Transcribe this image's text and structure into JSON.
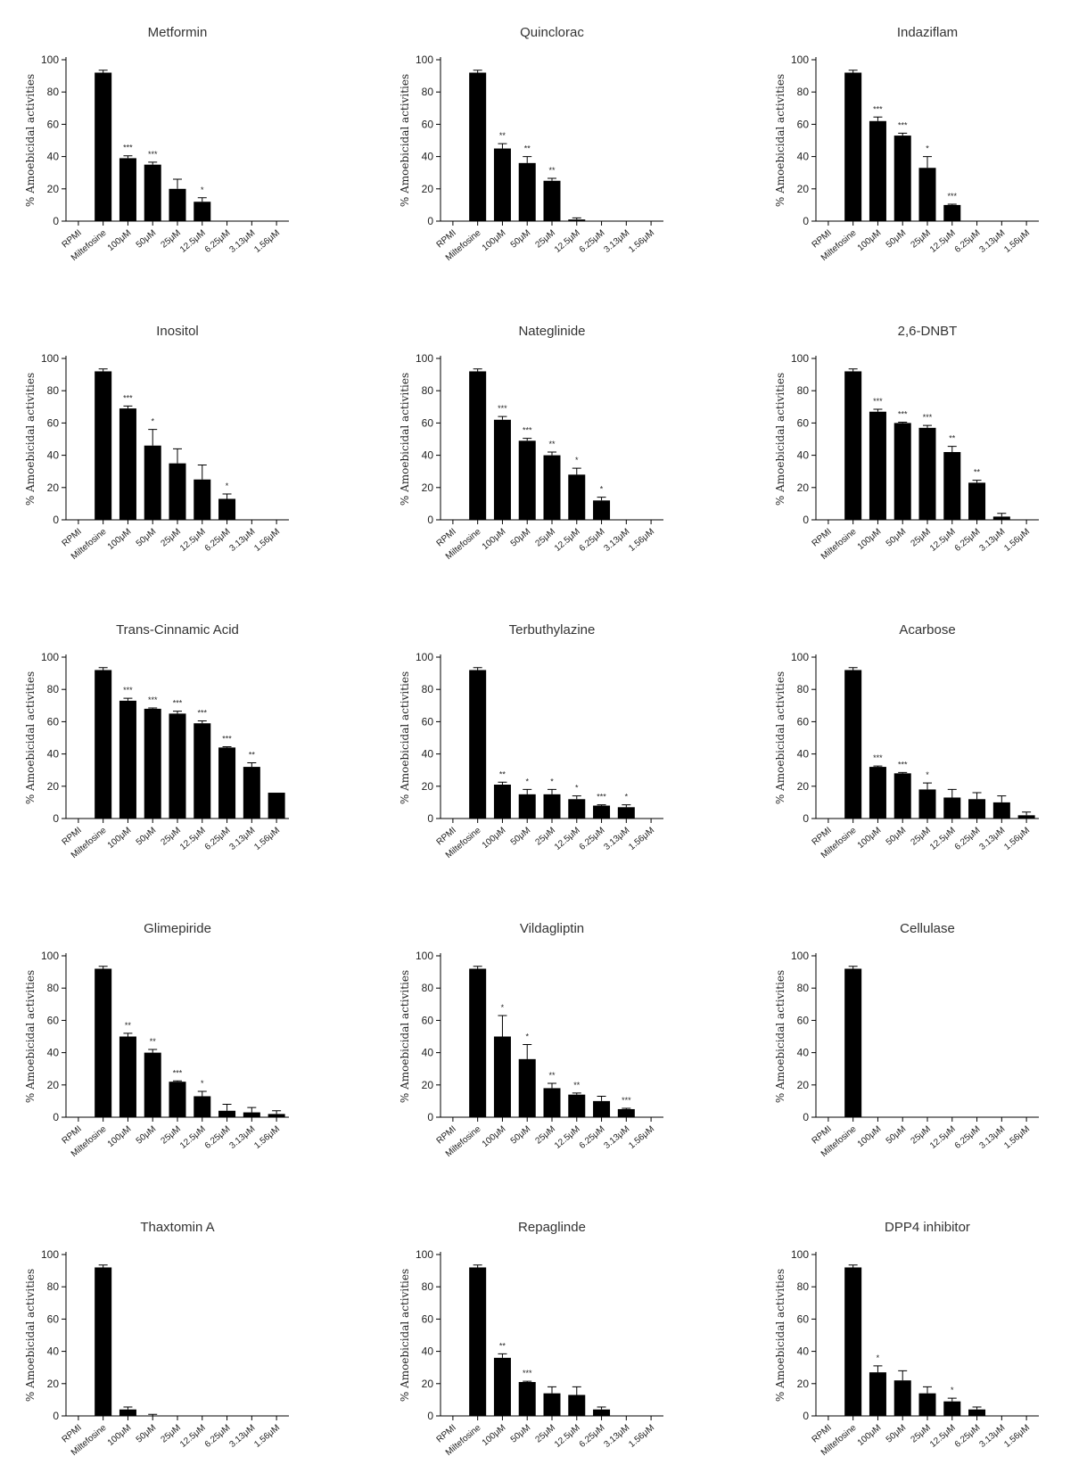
{
  "figure": {
    "categories": [
      "RPMI",
      "Miltefosine",
      "100μM",
      "50μM",
      "25μM",
      "12.5μM",
      "6.25μM",
      "3.13μM",
      "1.56μM"
    ],
    "ylabel": "% Amoebicidal activities",
    "yticks": [
      0,
      20,
      40,
      60,
      80,
      100
    ],
    "ylim": [
      0,
      100
    ],
    "bar_color": "#000000"
  },
  "chart_data": [
    {
      "type": "bar",
      "title": "Metformin",
      "values": [
        0,
        92,
        39,
        35,
        20,
        12,
        0,
        0,
        0
      ],
      "errors": [
        0,
        1.5,
        1.5,
        1.5,
        6,
        2.5,
        0,
        0,
        0
      ],
      "significance": [
        "",
        "",
        "***",
        "***",
        "",
        "*",
        "",
        "",
        ""
      ]
    },
    {
      "type": "bar",
      "title": "Quinclorac",
      "values": [
        0,
        92,
        45,
        36,
        25,
        1,
        0,
        0,
        0
      ],
      "errors": [
        0,
        1.5,
        3,
        4,
        1.5,
        1,
        0,
        0,
        0
      ],
      "significance": [
        "",
        "",
        "**",
        "**",
        "**",
        "",
        "",
        "",
        ""
      ]
    },
    {
      "type": "bar",
      "title": "Indaziflam",
      "values": [
        0,
        92,
        62,
        53,
        33,
        10,
        0,
        0,
        0
      ],
      "errors": [
        0,
        1.5,
        2.5,
        1.5,
        7,
        0.5,
        0,
        0,
        0
      ],
      "significance": [
        "",
        "",
        "***",
        "***",
        "*",
        "***",
        "",
        "",
        ""
      ]
    },
    {
      "type": "bar",
      "title": "Inositol",
      "values": [
        0,
        92,
        69,
        46,
        35,
        25,
        13,
        0,
        0
      ],
      "errors": [
        0,
        1.5,
        1.5,
        10,
        9,
        9,
        3,
        0,
        0
      ],
      "significance": [
        "",
        "",
        "***",
        "*",
        "",
        "",
        "*",
        "",
        ""
      ]
    },
    {
      "type": "bar",
      "title": "Nateglinide",
      "values": [
        0,
        92,
        62,
        49,
        40,
        28,
        12,
        0,
        0
      ],
      "errors": [
        0,
        1.5,
        2,
        1.5,
        2,
        4,
        2,
        0,
        0
      ],
      "significance": [
        "",
        "",
        "***",
        "***",
        "**",
        "*",
        "*",
        "",
        ""
      ]
    },
    {
      "type": "bar",
      "title": "2,6-DNBT",
      "values": [
        0,
        92,
        67,
        60,
        57,
        42,
        23,
        2,
        0
      ],
      "errors": [
        0,
        1.5,
        1.5,
        0.5,
        1.5,
        3.5,
        1.5,
        2,
        0
      ],
      "significance": [
        "",
        "",
        "***",
        "***",
        "***",
        "**",
        "**",
        "",
        ""
      ]
    },
    {
      "type": "bar",
      "title": "Trans-Cinnamic Acid",
      "values": [
        0,
        92,
        73,
        68,
        65,
        59,
        44,
        32,
        16
      ],
      "errors": [
        0,
        1.5,
        1.5,
        0.5,
        1.5,
        1.5,
        0.5,
        2.5,
        0
      ],
      "significance": [
        "",
        "",
        "***",
        "***",
        "***",
        "***",
        "***",
        "**",
        ""
      ]
    },
    {
      "type": "bar",
      "title": "Terbuthylazine",
      "values": [
        0,
        92,
        21,
        15,
        15,
        12,
        8,
        7,
        0
      ],
      "errors": [
        0,
        1.5,
        1.5,
        3,
        3,
        2,
        0.5,
        1.5,
        0
      ],
      "significance": [
        "",
        "",
        "**",
        "*",
        "*",
        "*",
        "***",
        "*",
        ""
      ]
    },
    {
      "type": "bar",
      "title": "Acarbose",
      "values": [
        0,
        92,
        32,
        28,
        18,
        13,
        12,
        10,
        2
      ],
      "errors": [
        0,
        1.5,
        0.5,
        0.5,
        4,
        5,
        4,
        4,
        2
      ],
      "significance": [
        "",
        "",
        "***",
        "***",
        "*",
        "",
        "",
        "",
        ""
      ]
    },
    {
      "type": "bar",
      "title": "Glimepiride",
      "values": [
        0,
        92,
        50,
        40,
        22,
        13,
        4,
        3,
        2
      ],
      "errors": [
        0,
        1.5,
        2,
        2,
        0.5,
        3,
        4,
        3,
        2
      ],
      "significance": [
        "",
        "",
        "**",
        "**",
        "***",
        "*",
        "",
        "",
        ""
      ]
    },
    {
      "type": "bar",
      "title": "Vildagliptin",
      "values": [
        0,
        92,
        50,
        36,
        18,
        14,
        10,
        5,
        0
      ],
      "errors": [
        0,
        1.5,
        13,
        9,
        3,
        1,
        3,
        0.5,
        0
      ],
      "significance": [
        "",
        "",
        "*",
        "*",
        "**",
        "**",
        "",
        "***",
        ""
      ]
    },
    {
      "type": "bar",
      "title": "Cellulase",
      "values": [
        0,
        92,
        0,
        0,
        0,
        0,
        0,
        0,
        0
      ],
      "errors": [
        0,
        1.5,
        0,
        0,
        0,
        0,
        0,
        0,
        0
      ],
      "significance": [
        "",
        "",
        "",
        "",
        "",
        "",
        "",
        "",
        ""
      ]
    },
    {
      "type": "bar",
      "title": "Thaxtomin A",
      "values": [
        0,
        92,
        4,
        0,
        0,
        0,
        0,
        0,
        0
      ],
      "errors": [
        0,
        1.5,
        1.5,
        1,
        0,
        0,
        0,
        0,
        0
      ],
      "significance": [
        "",
        "",
        "",
        "",
        "",
        "",
        "",
        "",
        ""
      ]
    },
    {
      "type": "bar",
      "title": "Repaglinde",
      "values": [
        0,
        92,
        36,
        21,
        14,
        13,
        4,
        0,
        0
      ],
      "errors": [
        0,
        1.5,
        2.5,
        0.5,
        4,
        5,
        1.5,
        0,
        0
      ],
      "significance": [
        "",
        "",
        "**",
        "***",
        "",
        "",
        "",
        "",
        ""
      ]
    },
    {
      "type": "bar",
      "title": "DPP4 inhibitor",
      "values": [
        0,
        92,
        27,
        22,
        14,
        9,
        4,
        0,
        0
      ],
      "errors": [
        0,
        1.5,
        4,
        6,
        4,
        2,
        1.5,
        0,
        0
      ],
      "significance": [
        "",
        "",
        "*",
        "",
        "",
        "*",
        "",
        "",
        ""
      ]
    }
  ]
}
